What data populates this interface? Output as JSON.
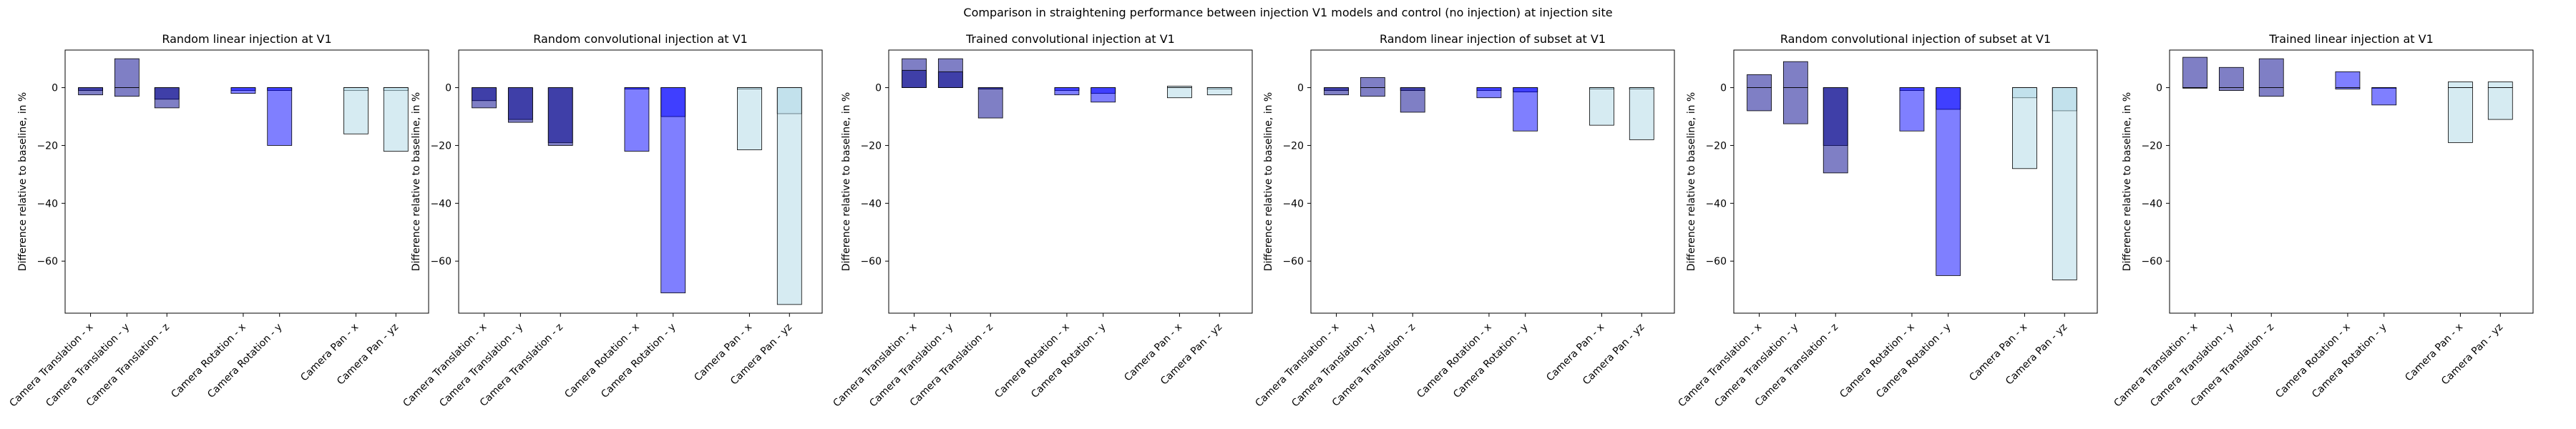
{
  "figure": {
    "suptitle": "Comparison in straightening performance between injection V1 models and control (no injection) at injection site"
  },
  "colors": {
    "translation": "#00008B",
    "rotation": "#0000FF",
    "pan": "#ADD8E6",
    "edge": "#000000"
  },
  "chart_data": [
    {
      "type": "bar",
      "title": "Random linear injection at V1",
      "ylabel": "Difference relative to baseline, in %",
      "xlabel": "",
      "ylim": [
        -78,
        13
      ],
      "yticks": [
        -60,
        -40,
        -20,
        0
      ],
      "grid": false,
      "categories": [
        "Camera Translation - x",
        "Camera Translation - y",
        "Camera Translation - z",
        "Camera Rotation - x",
        "Camera Rotation - y",
        "Camera Pan - x",
        "Camera Pan - yz"
      ],
      "series": [
        {
          "values": [
            -1.0,
            10.0,
            -4.0,
            -1.0,
            -1.0,
            -1.0,
            -1.0
          ]
        },
        {
          "values": [
            -2.5,
            -3.0,
            -7.0,
            -2.0,
            -20.0,
            -16.0,
            -22.0
          ]
        }
      ]
    },
    {
      "type": "bar",
      "title": "Random convolutional injection at V1",
      "ylabel": "Difference relative to baseline, in %",
      "xlabel": "",
      "ylim": [
        -78,
        13
      ],
      "yticks": [
        -60,
        -40,
        -20,
        0
      ],
      "grid": false,
      "categories": [
        "Camera Translation - x",
        "Camera Translation - y",
        "Camera Translation - z",
        "Camera Rotation - x",
        "Camera Rotation - y",
        "Camera Pan - x",
        "Camera Pan - yz"
      ],
      "series": [
        {
          "values": [
            -4.5,
            -11.0,
            -19.0,
            -0.5,
            -10.0,
            -0.5,
            -9.0
          ]
        },
        {
          "values": [
            -7.0,
            -12.0,
            -20.0,
            -22.0,
            -71.0,
            -21.5,
            -75.0
          ]
        }
      ]
    },
    {
      "type": "bar",
      "title": "Trained convolutional injection at V1",
      "ylabel": "Difference relative to baseline, in %",
      "xlabel": "",
      "ylim": [
        -78,
        13
      ],
      "yticks": [
        -60,
        -40,
        -20,
        0
      ],
      "grid": false,
      "categories": [
        "Camera Translation - x",
        "Camera Translation - y",
        "Camera Translation - z",
        "Camera Rotation - x",
        "Camera Rotation - y",
        "Camera Pan - x",
        "Camera Pan - yz"
      ],
      "series": [
        {
          "values": [
            10.0,
            10.0,
            -0.5,
            -1.0,
            -2.0,
            0.5,
            -0.5
          ]
        },
        {
          "values": [
            6.0,
            5.5,
            -10.5,
            -2.5,
            -5.0,
            -3.5,
            -2.5
          ]
        }
      ]
    },
    {
      "type": "bar",
      "title": "Random linear injection of subset at V1",
      "ylabel": "Difference relative to baseline, in %",
      "xlabel": "",
      "ylim": [
        -78,
        13
      ],
      "yticks": [
        -60,
        -40,
        -20,
        0
      ],
      "grid": false,
      "categories": [
        "Camera Translation - x",
        "Camera Translation - y",
        "Camera Translation - z",
        "Camera Rotation - x",
        "Camera Rotation - y",
        "Camera Pan - x",
        "Camera Pan - yz"
      ],
      "series": [
        {
          "values": [
            -1.0,
            3.5,
            -1.0,
            -1.0,
            -1.5,
            -0.5,
            -0.5
          ]
        },
        {
          "values": [
            -2.5,
            -3.0,
            -8.5,
            -3.5,
            -15.0,
            -13.0,
            -18.0
          ]
        }
      ]
    },
    {
      "type": "bar",
      "title": "Random convolutional injection of subset at V1",
      "ylabel": "Difference relative to baseline, in %",
      "xlabel": "",
      "ylim": [
        -78,
        13
      ],
      "yticks": [
        -60,
        -40,
        -20,
        0
      ],
      "grid": false,
      "categories": [
        "Camera Translation - x",
        "Camera Translation - y",
        "Camera Translation - z",
        "Camera Rotation - x",
        "Camera Rotation - y",
        "Camera Pan - x",
        "Camera Pan - yz"
      ],
      "series": [
        {
          "values": [
            4.5,
            9.0,
            -20.0,
            -1.0,
            -7.5,
            -3.5,
            -8.0
          ]
        },
        {
          "values": [
            -8.0,
            -12.5,
            -29.5,
            -15.0,
            -65.0,
            -28.0,
            -66.5
          ]
        }
      ]
    },
    {
      "type": "bar",
      "title": "Trained linear injection at V1",
      "ylabel": "Difference relative to baseline, in %",
      "xlabel": "",
      "ylim": [
        -78,
        13
      ],
      "yticks": [
        -60,
        -40,
        -20,
        0
      ],
      "grid": false,
      "categories": [
        "Camera Translation - x",
        "Camera Translation - y",
        "Camera Translation - z",
        "Camera Rotation - x",
        "Camera Rotation - y",
        "Camera Pan - x",
        "Camera Pan - yz"
      ],
      "series": [
        {
          "values": [
            10.5,
            7.0,
            10.0,
            5.5,
            0.0,
            2.0,
            2.0
          ]
        },
        {
          "values": [
            0.0,
            -1.0,
            -3.0,
            -0.5,
            -6.0,
            -19.0,
            -11.0
          ]
        }
      ]
    }
  ]
}
